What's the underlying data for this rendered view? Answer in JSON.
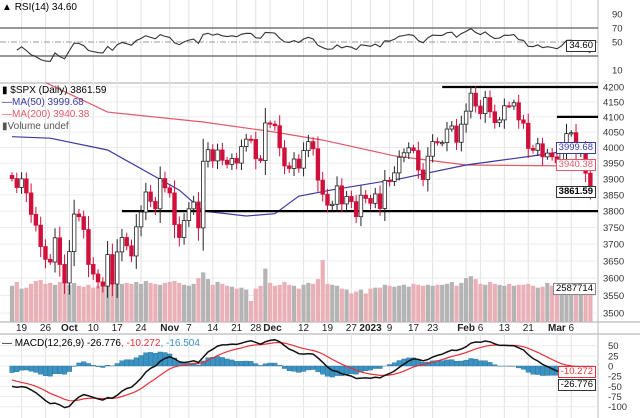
{
  "legends": {
    "rsi": "RSI(14) 34.60",
    "price": "$SPX (Daily) 3861.59",
    "ma50": "MA(50) 3999.68",
    "ma200": "MA(200) 3940.38",
    "volume": "Volume undef",
    "macd_name": "MACD(12,26,9) -26.776",
    "macd_signal": ", -10.272",
    "macd_hist": ", -16.504"
  },
  "tags": {
    "rsi": "34.60",
    "ma50": "3999.68",
    "ma200": "3940.38",
    "price": "3861.59",
    "volume": "2587714",
    "macd_signal": "-10.272",
    "macd": "-26.776"
  },
  "colors": {
    "up": "#ffffff",
    "down": "#d0103a",
    "ma50": "#3a3aa0",
    "ma200": "#e05a6a",
    "hist": "#3a93c3",
    "macd": "#111111",
    "signal": "#e8303a",
    "vol_up": "#b4b4b4",
    "vol_down": "#eab0b8"
  },
  "chart_data": {
    "type": "candlestick",
    "title": "$SPX (Daily)",
    "price_ticks": [
      4200,
      4150,
      4100,
      4050,
      4000,
      3950,
      3900,
      3850,
      3800,
      3750,
      3700,
      3650,
      3600,
      3550,
      3500
    ],
    "rsi_ticks": [
      90,
      70,
      50,
      10
    ],
    "macd_ticks": [
      50,
      25,
      0,
      -25,
      -50,
      -75,
      -100
    ],
    "x_ticks": [
      {
        "label": "19",
        "index": 2,
        "bold": false
      },
      {
        "label": "26",
        "index": 7,
        "bold": false
      },
      {
        "label": "Oct",
        "index": 12,
        "bold": true
      },
      {
        "label": "10",
        "index": 17,
        "bold": false
      },
      {
        "label": "17",
        "index": 22,
        "bold": false
      },
      {
        "label": "24",
        "index": 27,
        "bold": false
      },
      {
        "label": "Nov",
        "index": 33,
        "bold": true
      },
      {
        "label": "7",
        "index": 37,
        "bold": false
      },
      {
        "label": "14",
        "index": 42,
        "bold": false
      },
      {
        "label": "21",
        "index": 47,
        "bold": false
      },
      {
        "label": "28",
        "index": 51,
        "bold": false
      },
      {
        "label": "Dec",
        "index": 54,
        "bold": true
      },
      {
        "label": "12",
        "index": 61,
        "bold": false
      },
      {
        "label": "19",
        "index": 66,
        "bold": false
      },
      {
        "label": "27",
        "index": 71,
        "bold": false
      },
      {
        "label": "2023",
        "index": 75,
        "bold": true
      },
      {
        "label": "9",
        "index": 79,
        "bold": false
      },
      {
        "label": "17",
        "index": 84,
        "bold": false
      },
      {
        "label": "23",
        "index": 88,
        "bold": false
      },
      {
        "label": "Feb",
        "index": 95,
        "bold": true
      },
      {
        "label": "6",
        "index": 98,
        "bold": false
      },
      {
        "label": "13",
        "index": 103,
        "bold": false
      },
      {
        "label": "21",
        "index": 108,
        "bold": false
      },
      {
        "label": "Mar",
        "index": 114,
        "bold": true
      },
      {
        "label": "6",
        "index": 117,
        "bold": false
      }
    ],
    "support_lines": [
      {
        "value": 4200,
        "from_index": 90,
        "to_index": 121
      },
      {
        "value": 4100,
        "from_index": 114,
        "to_index": 121
      },
      {
        "value": 3800,
        "from_index": 23,
        "to_index": 121
      }
    ],
    "close": [
      3901,
      3873,
      3900,
      3856,
      3790,
      3757,
      3693,
      3655,
      3647,
      3719,
      3640,
      3586,
      3678,
      3791,
      3783,
      3744,
      3640,
      3612,
      3589,
      3577,
      3669,
      3583,
      3677,
      3720,
      3695,
      3665,
      3752,
      3797,
      3859,
      3830,
      3807,
      3901,
      3872,
      3856,
      3759,
      3720,
      3771,
      3807,
      3828,
      3749,
      3956,
      3993,
      3957,
      3992,
      3959,
      3946,
      3965,
      3950,
      4003,
      4027,
      4026,
      3964,
      3958,
      4080,
      4076,
      4071,
      3999,
      3941,
      3933,
      3963,
      3934,
      3990,
      4019,
      3996,
      3896,
      3852,
      3818,
      3821,
      3878,
      3822,
      3845,
      3829,
      3783,
      3849,
      3839,
      3824,
      3853,
      3808,
      3895,
      3892,
      3919,
      3969,
      3983,
      3999,
      3990,
      3928,
      3898,
      3972,
      4019,
      4016,
      4016,
      4060,
      4070,
      4017,
      4076,
      4119,
      4179,
      4136,
      4111,
      4164,
      4117,
      4081,
      4090,
      4137,
      4136,
      4147,
      4090,
      4079,
      3997,
      3991,
      4012,
      3970,
      3982,
      3970,
      3951,
      3981,
      4045,
      4048,
      3986,
      3992,
      3918,
      3861.59
    ],
    "volume_billions": [
      3.8,
      4.2,
      3.5,
      3.6,
      4.0,
      4.3,
      4.4,
      4.0,
      4.1,
      3.9,
      4.2,
      4.5,
      3.9,
      4.1,
      3.8,
      3.7,
      3.9,
      3.6,
      3.8,
      4.0,
      5.0,
      4.1,
      3.9,
      4.0,
      4.1,
      4.0,
      4.2,
      4.0,
      4.3,
      4.1,
      4.0,
      3.9,
      4.1,
      4.2,
      4.3,
      4.1,
      3.9,
      3.8,
      4.0,
      4.6,
      5.2,
      4.5,
      3.9,
      4.2,
      4.0,
      3.8,
      3.7,
      3.5,
      3.6,
      3.4,
      2.2,
      3.5,
      3.8,
      5.6,
      4.1,
      3.8,
      3.9,
      4.2,
      3.9,
      3.8,
      3.5,
      3.9,
      4.1,
      4.0,
      4.5,
      6.5,
      4.0,
      3.9,
      3.8,
      3.5,
      3.4,
      3.0,
      3.2,
      3.4,
      3.0,
      3.5,
      3.6,
      3.6,
      3.9,
      3.8,
      3.7,
      3.8,
      3.9,
      3.7,
      4.0,
      3.9,
      3.8,
      3.9,
      3.8,
      3.9,
      3.9,
      4.0,
      4.2,
      3.8,
      4.1,
      4.6,
      4.8,
      4.5,
      4.0,
      3.9,
      4.2,
      4.0,
      3.9,
      3.8,
      4.0,
      3.8,
      3.9,
      3.9,
      4.0,
      3.8,
      3.6,
      3.7,
      4.1,
      3.8,
      3.6,
      3.5,
      3.6,
      3.5,
      3.7,
      3.5,
      3.4,
      3.6
    ],
    "ma50": [
      [
        0,
        4035
      ],
      [
        8,
        4030
      ],
      [
        20,
        3992
      ],
      [
        35,
        3865
      ],
      [
        40,
        3800
      ],
      [
        49,
        3785
      ],
      [
        55,
        3792
      ],
      [
        60,
        3846
      ],
      [
        67,
        3866
      ],
      [
        81,
        3900
      ],
      [
        95,
        3944
      ],
      [
        109,
        3973
      ],
      [
        121,
        3999.68
      ]
    ],
    "ma200": [
      [
        7,
        4215
      ],
      [
        20,
        4116
      ],
      [
        40,
        4083
      ],
      [
        55,
        4050
      ],
      [
        65,
        4024
      ],
      [
        80,
        3973
      ],
      [
        95,
        3944
      ],
      [
        121,
        3940.38
      ]
    ],
    "rsi_last": 34.6,
    "macd_last": {
      "macd": -26.776,
      "signal": -10.272,
      "hist": -16.504
    }
  }
}
